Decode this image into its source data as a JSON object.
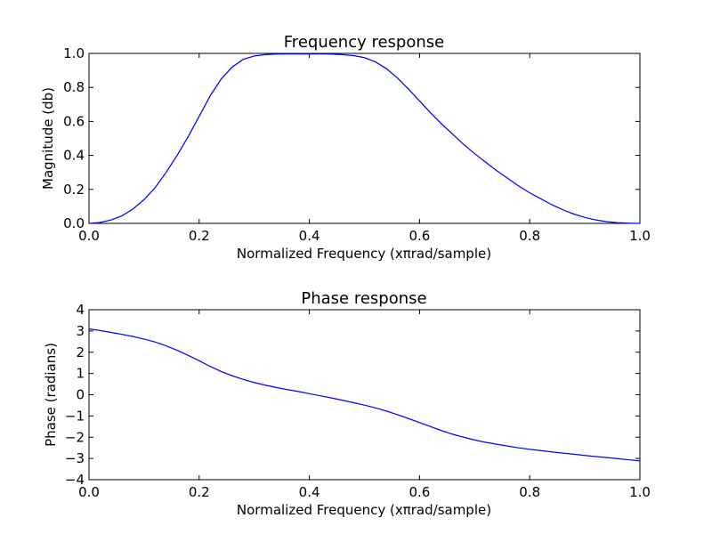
{
  "chart_data": [
    {
      "type": "line",
      "title": "Frequency response",
      "xlabel": "Normalized Frequency (xπrad/sample)",
      "ylabel": "Magnitude (db)",
      "xlim": [
        0.0,
        1.0
      ],
      "ylim": [
        0.0,
        1.0
      ],
      "x_ticks": [
        "0.0",
        "0.2",
        "0.4",
        "0.6",
        "0.8",
        "1.0"
      ],
      "y_ticks": [
        "0.0",
        "0.2",
        "0.4",
        "0.6",
        "0.8",
        "1.0"
      ],
      "grid": false,
      "color": "#0000ff",
      "series": [
        {
          "x": [
            0.0,
            0.02,
            0.04,
            0.06,
            0.08,
            0.1,
            0.12,
            0.14,
            0.16,
            0.18,
            0.2,
            0.22,
            0.24,
            0.26,
            0.28,
            0.3,
            0.32,
            0.34,
            0.36,
            0.38,
            0.4,
            0.42,
            0.44,
            0.46,
            0.48,
            0.5,
            0.52,
            0.54,
            0.56,
            0.58,
            0.6,
            0.62,
            0.64,
            0.66,
            0.68,
            0.7,
            0.72,
            0.74,
            0.76,
            0.78,
            0.8,
            0.82,
            0.84,
            0.86,
            0.88,
            0.9,
            0.92,
            0.94,
            0.96,
            0.98,
            1.0
          ],
          "values": [
            0.0,
            0.005,
            0.02,
            0.045,
            0.085,
            0.14,
            0.21,
            0.3,
            0.4,
            0.51,
            0.63,
            0.75,
            0.85,
            0.92,
            0.965,
            0.985,
            0.993,
            0.996,
            0.997,
            0.997,
            0.997,
            0.997,
            0.996,
            0.993,
            0.987,
            0.975,
            0.95,
            0.91,
            0.855,
            0.79,
            0.72,
            0.65,
            0.585,
            0.525,
            0.465,
            0.41,
            0.36,
            0.31,
            0.265,
            0.22,
            0.18,
            0.145,
            0.11,
            0.08,
            0.055,
            0.035,
            0.02,
            0.01,
            0.004,
            0.001,
            0.0
          ]
        }
      ]
    },
    {
      "type": "line",
      "title": "Phase response",
      "xlabel": "Normalized Frequency (xπrad/sample)",
      "ylabel": "Phase (radians)",
      "xlim": [
        0.0,
        1.0
      ],
      "ylim": [
        -4,
        4
      ],
      "x_ticks": [
        "0.0",
        "0.2",
        "0.4",
        "0.6",
        "0.8",
        "1.0"
      ],
      "y_ticks": [
        "4",
        "3",
        "2",
        "1",
        "0",
        "−1",
        "−2",
        "−3",
        "−4"
      ],
      "grid": false,
      "color": "#0000ff",
      "series": [
        {
          "x": [
            0.0,
            0.02,
            0.04,
            0.06,
            0.08,
            0.1,
            0.12,
            0.14,
            0.16,
            0.18,
            0.2,
            0.22,
            0.24,
            0.26,
            0.28,
            0.3,
            0.32,
            0.34,
            0.36,
            0.38,
            0.4,
            0.42,
            0.44,
            0.46,
            0.48,
            0.5,
            0.52,
            0.54,
            0.56,
            0.58,
            0.6,
            0.62,
            0.64,
            0.66,
            0.68,
            0.7,
            0.72,
            0.74,
            0.76,
            0.78,
            0.8,
            0.82,
            0.84,
            0.86,
            0.88,
            0.9,
            0.92,
            0.94,
            0.96,
            0.98,
            1.0
          ],
          "values": [
            3.1,
            3.02,
            2.93,
            2.84,
            2.74,
            2.62,
            2.48,
            2.3,
            2.09,
            1.85,
            1.6,
            1.33,
            1.09,
            0.89,
            0.72,
            0.57,
            0.45,
            0.34,
            0.24,
            0.15,
            0.05,
            -0.05,
            -0.15,
            -0.26,
            -0.37,
            -0.49,
            -0.62,
            -0.77,
            -0.94,
            -1.12,
            -1.31,
            -1.5,
            -1.69,
            -1.86,
            -2.0,
            -2.13,
            -2.24,
            -2.33,
            -2.42,
            -2.5,
            -2.57,
            -2.63,
            -2.69,
            -2.75,
            -2.8,
            -2.86,
            -2.91,
            -2.96,
            -3.01,
            -3.06,
            -3.12
          ]
        }
      ]
    }
  ]
}
